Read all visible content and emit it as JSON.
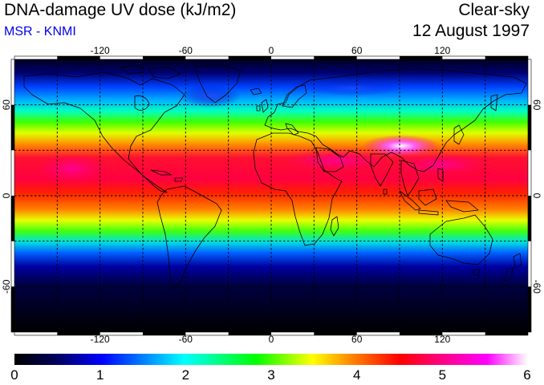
{
  "header": {
    "title": "DNA-damage UV dose (kJ/m2)",
    "source": "MSR - KNMI",
    "condition": "Clear-sky",
    "date": "12 August 1997"
  },
  "map": {
    "projection": "equirectangular",
    "lon_range": [
      -180,
      180
    ],
    "lat_range": [
      -90,
      90
    ],
    "lon_ticks": [
      -120,
      -60,
      0,
      60,
      120
    ],
    "lat_ticks": [
      60,
      0,
      -60
    ],
    "gridlines": "dashed every 30 degrees",
    "colors": {
      "scale": [
        "#000000",
        "#00005a",
        "#0000ff",
        "#00ffff",
        "#00ff00",
        "#ffff00",
        "#ff8000",
        "#ff0000",
        "#ff0080",
        "#ff00ff",
        "#ffffff"
      ]
    }
  },
  "colorbar": {
    "min": 0,
    "max": 6,
    "tick_labels": [
      "0",
      "1",
      "2",
      "3",
      "4",
      "5",
      "6"
    ]
  }
}
